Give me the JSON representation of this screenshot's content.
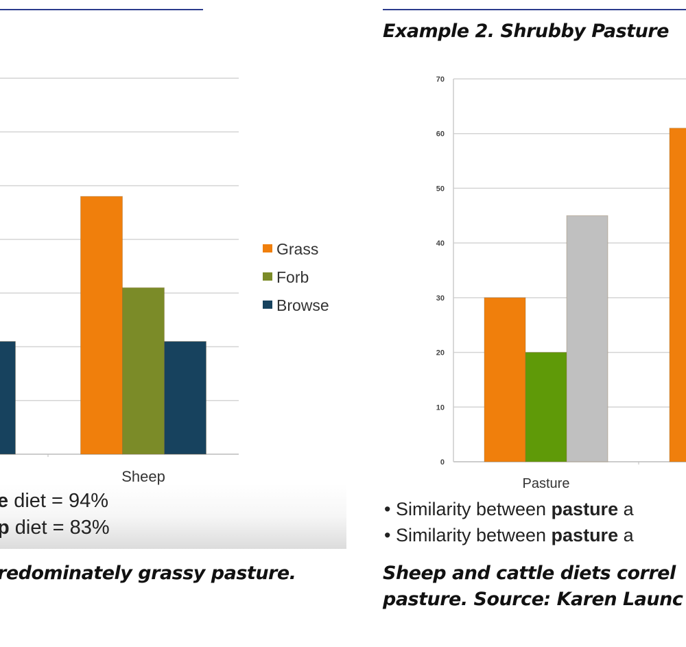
{
  "left_panel": {
    "stats": [
      {
        "bold": "e",
        "rest": " diet = 94%"
      },
      {
        "bold": "p",
        "rest": " diet = 83%"
      }
    ],
    "caption": "redominately grassy pasture."
  },
  "right_panel": {
    "heading": "Example 2. Shrubby Pasture",
    "bullets": [
      {
        "pre": "• Similarity between ",
        "bold": "pasture",
        "post": " a"
      },
      {
        "pre": "• Similarity between ",
        "bold": "pasture",
        "post": " a"
      }
    ],
    "caption_lines": [
      "Sheep and cattle diets correl",
      "pasture. Source: Karen Launc"
    ]
  },
  "chart_data": [
    {
      "type": "bar",
      "categories": [
        "",
        "Sheep"
      ],
      "ylim": [
        0,
        70
      ],
      "grid": true,
      "legend_position": "right",
      "series": [
        {
          "name": "Grass",
          "color": "#f07f0c",
          "values": [
            null,
            48
          ]
        },
        {
          "name": "Forb",
          "color": "#7b8b28",
          "values": [
            null,
            31
          ]
        },
        {
          "name": "Browse",
          "color": "#17425e",
          "values": [
            21,
            21
          ]
        }
      ]
    },
    {
      "type": "bar",
      "categories": [
        "Pasture",
        ""
      ],
      "yticks": [
        "0",
        "10",
        "20",
        "30",
        "40",
        "50",
        "60",
        "70"
      ],
      "ylim": [
        0,
        70
      ],
      "grid": true,
      "series": [
        {
          "color": "#f07f0c",
          "values": [
            30,
            61
          ]
        },
        {
          "color": "#5f9a08",
          "values": [
            20,
            null
          ]
        },
        {
          "color": "#c0c0c0",
          "values": [
            45,
            null
          ]
        }
      ]
    }
  ]
}
